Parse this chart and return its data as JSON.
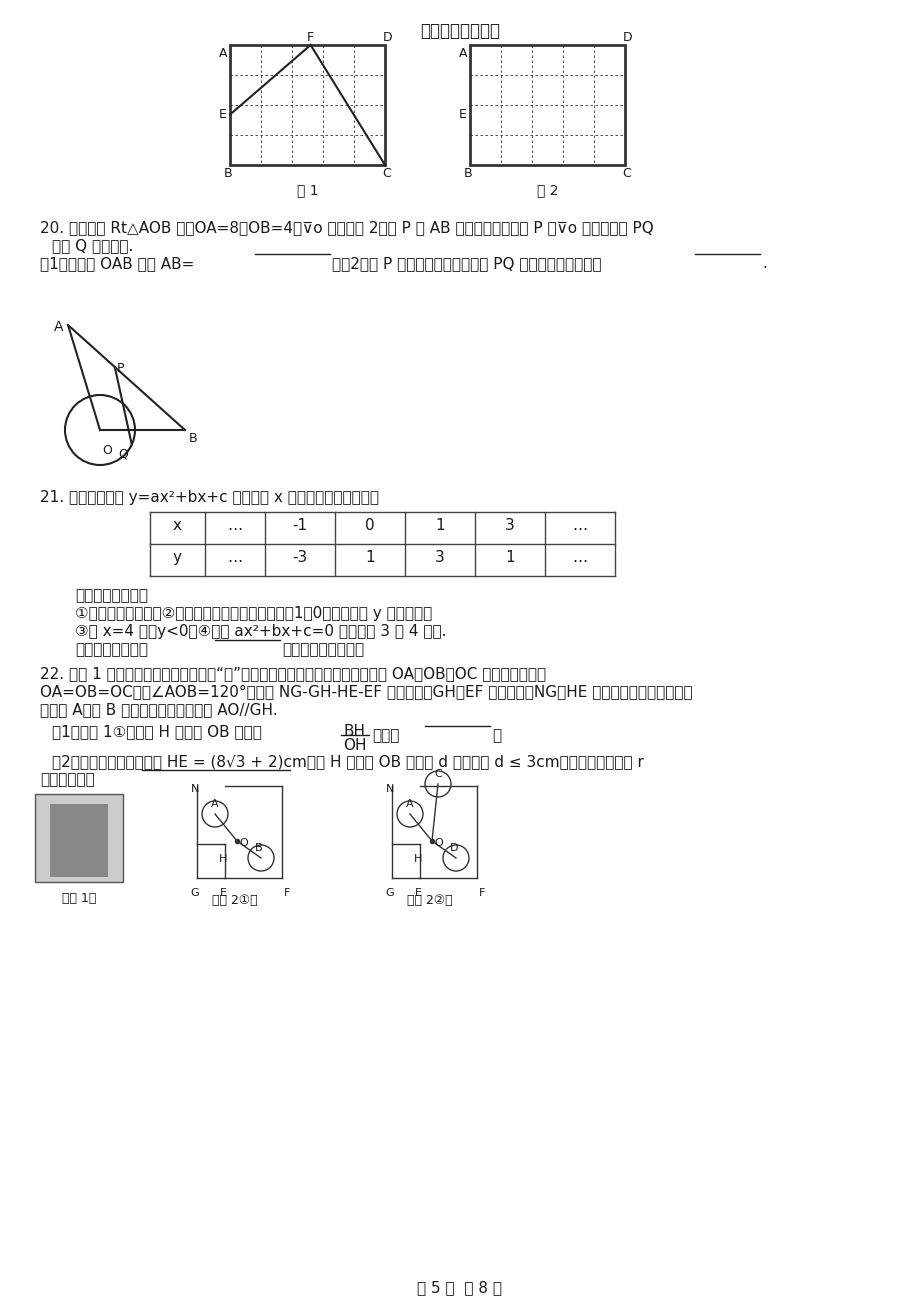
{
  "title": "中考数学题型汇总",
  "page_footer": "第 5 页  共 8 页",
  "bg_color": "#ffffff",
  "text_color": "#1a1a1a",
  "fig_width": 9.2,
  "fig_height": 13.02
}
